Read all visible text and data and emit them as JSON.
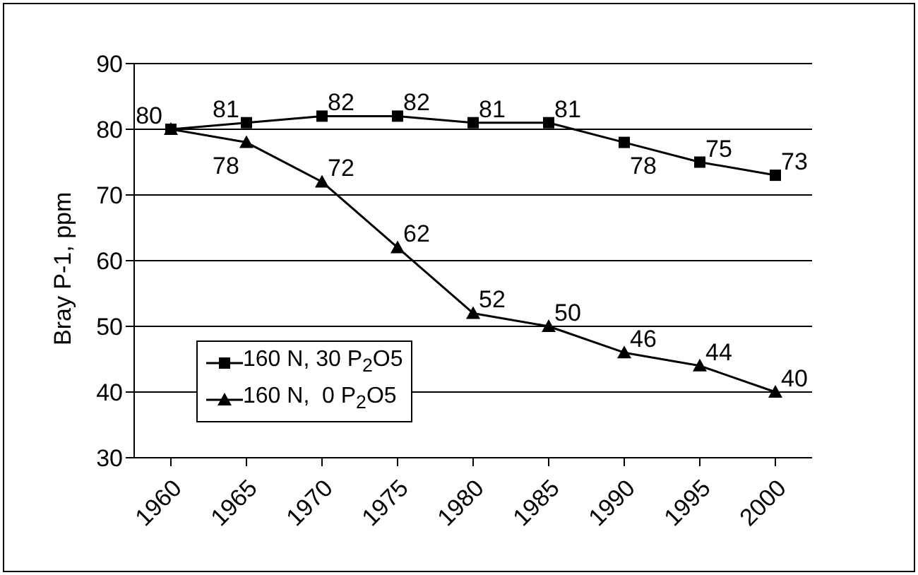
{
  "chart_data": {
    "type": "line",
    "ylabel": "Bray P-1, ppm",
    "categories": [
      "1960",
      "1965",
      "1970",
      "1975",
      "1980",
      "1985",
      "1990",
      "1995",
      "2000"
    ],
    "series": [
      {
        "name": "160 N, 30 P$_{2}$O5",
        "color": "#000000",
        "marker": "square",
        "values": [
          80,
          81,
          82,
          82,
          81,
          81,
          78,
          75,
          73
        ],
        "value_labels": [
          "80",
          "81",
          "82",
          "82",
          "81",
          "81",
          "78",
          "75",
          "73"
        ]
      },
      {
        "name": "160 N,  0 P$_{2}$O5",
        "color": "#000000",
        "marker": "triangle",
        "values": [
          80,
          78,
          72,
          62,
          52,
          50,
          46,
          44,
          40
        ],
        "value_labels": [
          null,
          "78",
          "72",
          "62",
          "52",
          "50",
          "46",
          "44",
          "40"
        ]
      }
    ],
    "ylim": [
      30,
      90
    ],
    "yticks": [
      30,
      40,
      50,
      60,
      70,
      80,
      90
    ],
    "grid": "y",
    "legend": "left",
    "line_style": "solid"
  }
}
